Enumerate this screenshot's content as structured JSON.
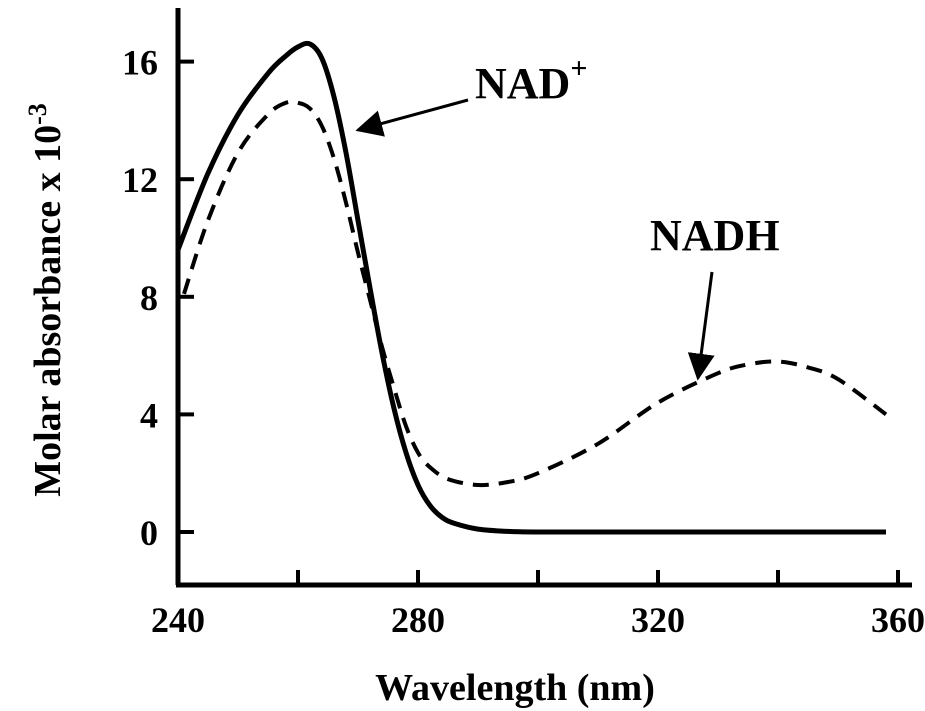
{
  "chart_data": {
    "type": "line",
    "title": "",
    "xlabel": "Wavelength (nm)",
    "ylabel": "Molar absorbance x 10",
    "ylabel_exponent": "-3",
    "xlim": [
      240,
      360
    ],
    "ylim": [
      -2,
      17
    ],
    "xticks": [
      240,
      280,
      320,
      360
    ],
    "xtick_labels": [
      "240",
      "280",
      "320",
      "360"
    ],
    "yticks": [
      0,
      4,
      8,
      12,
      16
    ],
    "ytick_labels": [
      "0",
      "4",
      "8",
      "12",
      "16"
    ],
    "grid": false,
    "legend": "none",
    "series": [
      {
        "name": "NAD+",
        "line_style": "solid",
        "color": "#000000",
        "x": [
          240,
          245,
          250,
          255,
          258,
          260,
          262,
          264,
          266,
          268,
          270,
          272,
          274,
          276,
          278,
          280,
          282,
          284,
          286,
          290,
          295,
          300,
          310,
          320,
          340,
          358
        ],
        "y": [
          9.6,
          12.2,
          14.2,
          15.6,
          16.2,
          16.5,
          16.6,
          16.1,
          14.8,
          12.9,
          10.6,
          8.3,
          6.1,
          4.2,
          2.7,
          1.6,
          0.9,
          0.5,
          0.3,
          0.1,
          0.02,
          0,
          0,
          0,
          0,
          0
        ]
      },
      {
        "name": "NADH",
        "line_style": "dashed",
        "color": "#000000",
        "x": [
          241,
          245,
          250,
          255,
          258,
          260,
          262,
          264,
          266,
          268,
          270,
          272,
          274,
          276,
          278,
          280,
          282,
          285,
          290,
          295,
          300,
          310,
          320,
          330,
          335,
          340,
          345,
          350,
          358
        ],
        "y": [
          8.1,
          10.6,
          12.9,
          14.2,
          14.6,
          14.6,
          14.4,
          13.8,
          12.7,
          11.2,
          9.5,
          7.9,
          6.3,
          4.9,
          3.6,
          2.7,
          2.2,
          1.8,
          1.6,
          1.7,
          2.0,
          3.0,
          4.4,
          5.4,
          5.7,
          5.8,
          5.6,
          5.2,
          4.0
        ]
      }
    ],
    "annotations": [
      {
        "text": "NAD",
        "superscript": "+",
        "points_to_series": "NAD+"
      },
      {
        "text": "NADH",
        "points_to_series": "NADH"
      }
    ]
  }
}
